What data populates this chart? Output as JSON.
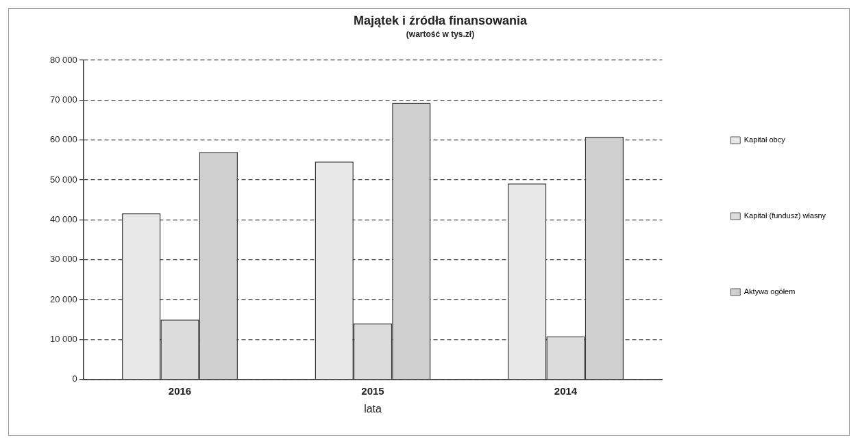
{
  "chart_data": {
    "type": "bar",
    "title": "Majątek i źródła finansowania",
    "subtitle": "(wartość w tys.zł)",
    "xlabel": "lata",
    "categories": [
      "2016",
      "2015",
      "2014"
    ],
    "series": [
      {
        "name": "Kapitał obcy",
        "color": "#e8e8e8",
        "values": [
          41600,
          54600,
          49100
        ]
      },
      {
        "name": "Kapitał (fundusz) własny",
        "color": "#dcdcdc",
        "values": [
          15000,
          14000,
          10800
        ]
      },
      {
        "name": "Aktywa ogółem",
        "color": "#cfcfcf",
        "values": [
          57000,
          69300,
          60800
        ]
      }
    ],
    "ylim": [
      0,
      80000
    ],
    "yticks": [
      {
        "value": 0,
        "label": "0"
      },
      {
        "value": 10000,
        "label": "10 000"
      },
      {
        "value": 20000,
        "label": "20 000"
      },
      {
        "value": 30000,
        "label": "30 000"
      },
      {
        "value": 40000,
        "label": "40 000"
      },
      {
        "value": 50000,
        "label": "50 000"
      },
      {
        "value": 60000,
        "label": "60 000"
      },
      {
        "value": 70000,
        "label": "70 000"
      },
      {
        "value": 80000,
        "label": "80 000"
      }
    ],
    "grid": "y",
    "legend": "right"
  }
}
